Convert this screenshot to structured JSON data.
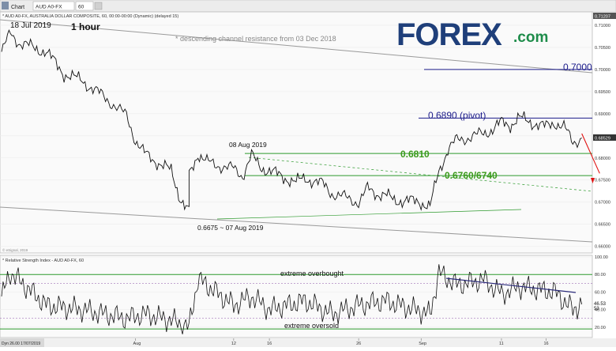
{
  "toolbar": {
    "chart_tab": "Chart",
    "symbol_value": "AUD A0-FX",
    "interval_value": "60"
  },
  "colors": {
    "price": "#111111",
    "channel": "#9a9a9a",
    "support_green": "#2e9a2e",
    "label_green": "#3a9a1a",
    "level_blue": "#1b1b8a",
    "projection": "#e01010",
    "rsi_trend": "#2a2a7a",
    "logo_blue": "#1f3f7a",
    "logo_green": "#1e8c4a"
  },
  "logo": {
    "main": "FOREX",
    "suffix": ".com"
  },
  "chart_data": [
    {
      "type": "line",
      "title": "* AUD A0-FX, AUSTRALIA DOLLAR COMPOSITE, 60, 00:00-00:00 (Dynamic) (delayed 15)",
      "timeframe_label": "1 hour",
      "watermark": "© eSignal, 2019",
      "last_price": "0.68529",
      "top_price_tag": "0.71207",
      "ylim": [
        0.6585,
        0.7125
      ],
      "yticks": [
        0.66,
        0.665,
        0.67,
        0.675,
        0.68,
        0.685,
        0.69,
        0.695,
        0.7,
        0.705,
        0.71
      ],
      "ytick_labels": [
        "0.66000",
        "0.66500",
        "0.67000",
        "0.67500",
        "0.68000",
        "0.68500",
        "0.69000",
        "0.69500",
        "0.70000",
        "0.70500",
        "0.71000"
      ],
      "x_dates": [
        "Aug",
        "12",
        "16",
        "26",
        "Sep",
        "11",
        "16"
      ],
      "x_footer": "Dyn 26.00 17/07/2019",
      "price_series": {
        "name": "AUD A0-FX",
        "x": [
          "2019-07-17",
          "2019-07-18",
          "2019-07-19",
          "2019-07-22",
          "2019-07-24",
          "2019-07-26",
          "2019-07-29",
          "2019-07-31",
          "2019-08-01",
          "2019-08-02",
          "2019-08-05",
          "2019-08-06",
          "2019-08-07",
          "2019-08-07",
          "2019-08-08",
          "2019-08-09",
          "2019-08-12",
          "2019-08-13",
          "2019-08-14",
          "2019-08-15",
          "2019-08-16",
          "2019-08-19",
          "2019-08-20",
          "2019-08-22",
          "2019-08-23",
          "2019-08-26",
          "2019-08-27",
          "2019-08-28",
          "2019-08-29",
          "2019-08-30",
          "2019-09-02",
          "2019-09-03",
          "2019-09-04",
          "2019-09-05",
          "2019-09-06",
          "2019-09-09",
          "2019-09-10",
          "2019-09-11",
          "2019-09-12",
          "2019-09-13",
          "2019-09-16",
          "2019-09-17",
          "2019-09-18",
          "2019-09-19",
          "2019-09-20"
        ],
        "values": [
          0.704,
          0.7082,
          0.706,
          0.704,
          0.699,
          0.6975,
          0.693,
          0.6895,
          0.684,
          0.681,
          0.677,
          0.671,
          0.6676,
          0.676,
          0.681,
          0.679,
          0.6775,
          0.676,
          0.6805,
          0.678,
          0.677,
          0.6745,
          0.6755,
          0.674,
          0.672,
          0.67,
          0.673,
          0.672,
          0.6715,
          0.6705,
          0.67,
          0.669,
          0.677,
          0.682,
          0.684,
          0.6855,
          0.6865,
          0.688,
          0.6875,
          0.689,
          0.687,
          0.688,
          0.687,
          0.6835,
          0.6845
        ]
      },
      "projection": {
        "x": [
          "2019-09-20",
          "2019-09-21",
          "2019-09-22"
        ],
        "values": [
          0.6855,
          0.681,
          0.6765
        ]
      },
      "levels": [
        {
          "label": "0.7000",
          "value": 0.7,
          "color": "blue"
        },
        {
          "label": "0.6890 (pivot)",
          "value": 0.689,
          "color": "blue"
        },
        {
          "label": "0.6810",
          "value": 0.681,
          "color": "green"
        },
        {
          "label": "0.6760/6740",
          "value": 0.676,
          "color": "green"
        }
      ],
      "annotations": [
        "18 Jul 2019",
        "* descending channel resistance from 03 Dec 2018",
        "08 Aug 2019",
        "0.6675 ~ 07 Aug 2019"
      ]
    },
    {
      "type": "line",
      "title": "* Relative Strength Index - AUD A0-FX, 60",
      "ylim": [
        10,
        100
      ],
      "yticks": [
        20,
        40,
        60,
        80,
        100
      ],
      "ytick_labels": [
        "20.00",
        "40.00",
        "60.00",
        "80.00",
        "100.00"
      ],
      "overbought_label": "extreme overbought",
      "oversold_label": "extreme oversold",
      "last_values": [
        "46.53",
        "53"
      ],
      "rsi_series": {
        "name": "RSI",
        "x": [
          "2019-07-17",
          "2019-07-18",
          "2019-07-22",
          "2019-07-26",
          "2019-07-31",
          "2019-08-02",
          "2019-08-05",
          "2019-08-07",
          "2019-08-08",
          "2019-08-12",
          "2019-08-14",
          "2019-08-16",
          "2019-08-20",
          "2019-08-23",
          "2019-08-26",
          "2019-08-29",
          "2019-09-02",
          "2019-09-03",
          "2019-09-04",
          "2019-09-06",
          "2019-09-09",
          "2019-09-11",
          "2019-09-13",
          "2019-09-17",
          "2019-09-19",
          "2019-09-20"
        ],
        "values": [
          55,
          82,
          45,
          40,
          30,
          35,
          28,
          20,
          75,
          45,
          55,
          40,
          50,
          35,
          45,
          50,
          38,
          35,
          82,
          68,
          74,
          58,
          66,
          60,
          40,
          46
        ]
      }
    }
  ]
}
